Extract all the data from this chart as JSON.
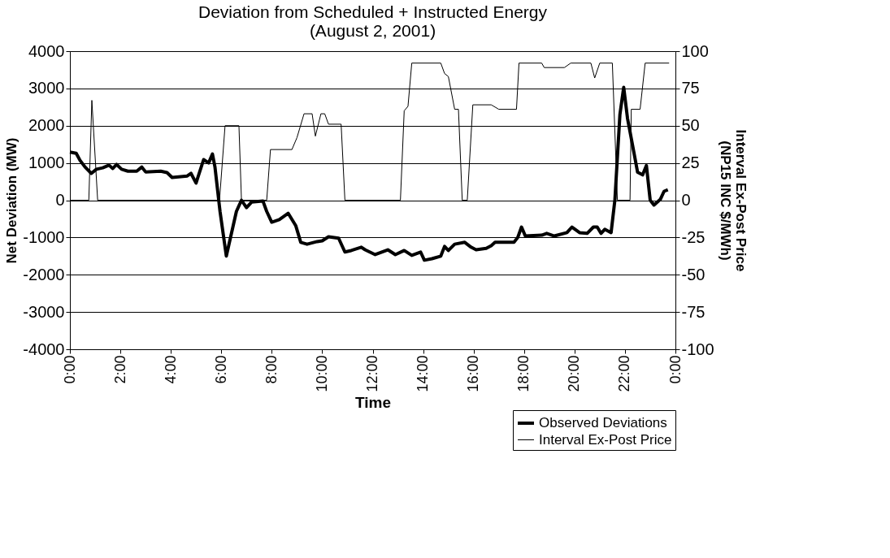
{
  "chart_data": {
    "type": "line",
    "title": "Deviation from Scheduled + Instructed Energy\n(August 2, 2001)",
    "xlabel": "Time",
    "ylabel": "Net Deviation (MW)",
    "y2label": "Interval Ex-Post Price\n(NP15 INC $/MWh)",
    "xlim": [
      0,
      24
    ],
    "xticks": [
      {
        "value": 0,
        "label": "0:00"
      },
      {
        "value": 2,
        "label": "2:00"
      },
      {
        "value": 4,
        "label": "4:00"
      },
      {
        "value": 6,
        "label": "6:00"
      },
      {
        "value": 8,
        "label": "8:00"
      },
      {
        "value": 10,
        "label": "10:00"
      },
      {
        "value": 12,
        "label": "12:00"
      },
      {
        "value": 14,
        "label": "14:00"
      },
      {
        "value": 16,
        "label": "16:00"
      },
      {
        "value": 18,
        "label": "18:00"
      },
      {
        "value": 20,
        "label": "20:00"
      },
      {
        "value": 22,
        "label": "22:00"
      },
      {
        "value": 24,
        "label": "0:00"
      }
    ],
    "ylim": [
      -4000,
      4000
    ],
    "yticks": [
      -4000,
      -3000,
      -2000,
      -1000,
      0,
      1000,
      2000,
      3000,
      4000
    ],
    "y2lim": [
      -100,
      100
    ],
    "y2ticks": [
      -100,
      -75,
      -50,
      -25,
      0,
      25,
      50,
      75,
      100
    ],
    "grid": "y",
    "legend": "bottom right",
    "marker": "none",
    "line_style": "solid",
    "series": [
      {
        "name": "Observed Deviations",
        "color": "#000000",
        "axis": "y",
        "x": [
          0,
          0.25,
          0.4,
          0.6,
          0.85,
          1.05,
          1.3,
          1.55,
          1.7,
          1.85,
          2.05,
          2.3,
          2.65,
          2.85,
          3.0,
          3.6,
          3.85,
          4.05,
          4.65,
          4.8,
          5.0,
          5.3,
          5.5,
          5.65,
          5.75,
          5.95,
          6.2,
          6.6,
          6.8,
          7.0,
          7.2,
          7.65,
          7.8,
          8.0,
          8.3,
          8.65,
          8.95,
          9.15,
          9.4,
          9.8,
          10.0,
          10.25,
          10.65,
          10.9,
          11.15,
          11.55,
          11.7,
          12.1,
          12.6,
          12.9,
          13.25,
          13.55,
          13.9,
          14.05,
          14.35,
          14.7,
          14.85,
          15.0,
          15.25,
          15.65,
          15.9,
          16.1,
          16.5,
          16.7,
          16.85,
          17.6,
          17.75,
          17.9,
          18.05,
          18.7,
          18.9,
          19.2,
          19.7,
          19.9,
          20.2,
          20.5,
          20.75,
          20.9,
          21.05,
          21.2,
          21.45,
          21.6,
          21.8,
          21.95,
          22.1,
          22.35,
          22.5,
          22.7,
          22.85,
          23.0,
          23.15,
          23.4,
          23.55,
          23.7
        ],
        "values": [
          1290,
          1260,
          1070,
          890,
          720,
          830,
          870,
          940,
          850,
          960,
          830,
          780,
          780,
          890,
          760,
          780,
          740,
          610,
          650,
          720,
          460,
          1090,
          1000,
          1240,
          890,
          -300,
          -1500,
          -300,
          0,
          -200,
          -50,
          -20,
          -300,
          -590,
          -520,
          -350,
          -680,
          -1130,
          -1180,
          -1110,
          -1090,
          -980,
          -1020,
          -1390,
          -1350,
          -1260,
          -1330,
          -1460,
          -1330,
          -1460,
          -1350,
          -1480,
          -1390,
          -1610,
          -1570,
          -1500,
          -1240,
          -1350,
          -1180,
          -1130,
          -1260,
          -1330,
          -1290,
          -1220,
          -1130,
          -1130,
          -1000,
          -720,
          -960,
          -940,
          -890,
          -960,
          -870,
          -720,
          -870,
          -890,
          -720,
          -720,
          -890,
          -780,
          -870,
          0,
          2300,
          3030,
          2200,
          1300,
          750,
          680,
          930,
          0,
          -130,
          20,
          240,
          280
        ]
      },
      {
        "name": "Interval Ex-Post Price",
        "color": "#000000",
        "axis": "y2",
        "x": [
          0,
          0.75,
          0.87,
          1.1,
          5.93,
          6.15,
          6.7,
          6.8,
          7.8,
          7.95,
          8.8,
          9.0,
          9.28,
          9.6,
          9.73,
          9.95,
          10.1,
          10.25,
          10.75,
          10.9,
          13.1,
          13.25,
          13.4,
          13.55,
          14.7,
          14.85,
          15.0,
          15.25,
          15.4,
          15.55,
          15.75,
          15.97,
          16.7,
          17.0,
          17.7,
          17.8,
          18.7,
          18.8,
          19.6,
          19.85,
          20.65,
          20.8,
          21.0,
          21.5,
          21.7,
          22.2,
          22.25,
          22.6,
          22.8,
          23.75
        ],
        "values": [
          0,
          0,
          67,
          0,
          0,
          50,
          50,
          0,
          0,
          34,
          34,
          42,
          58,
          58,
          43,
          58,
          58,
          51,
          51,
          0,
          0,
          60,
          63,
          92,
          92,
          85,
          83,
          61,
          61,
          0,
          0,
          64,
          64,
          61,
          61,
          92,
          92,
          89,
          89,
          92,
          92,
          82,
          92,
          92,
          0,
          0,
          61,
          61,
          92,
          92
        ]
      }
    ]
  }
}
